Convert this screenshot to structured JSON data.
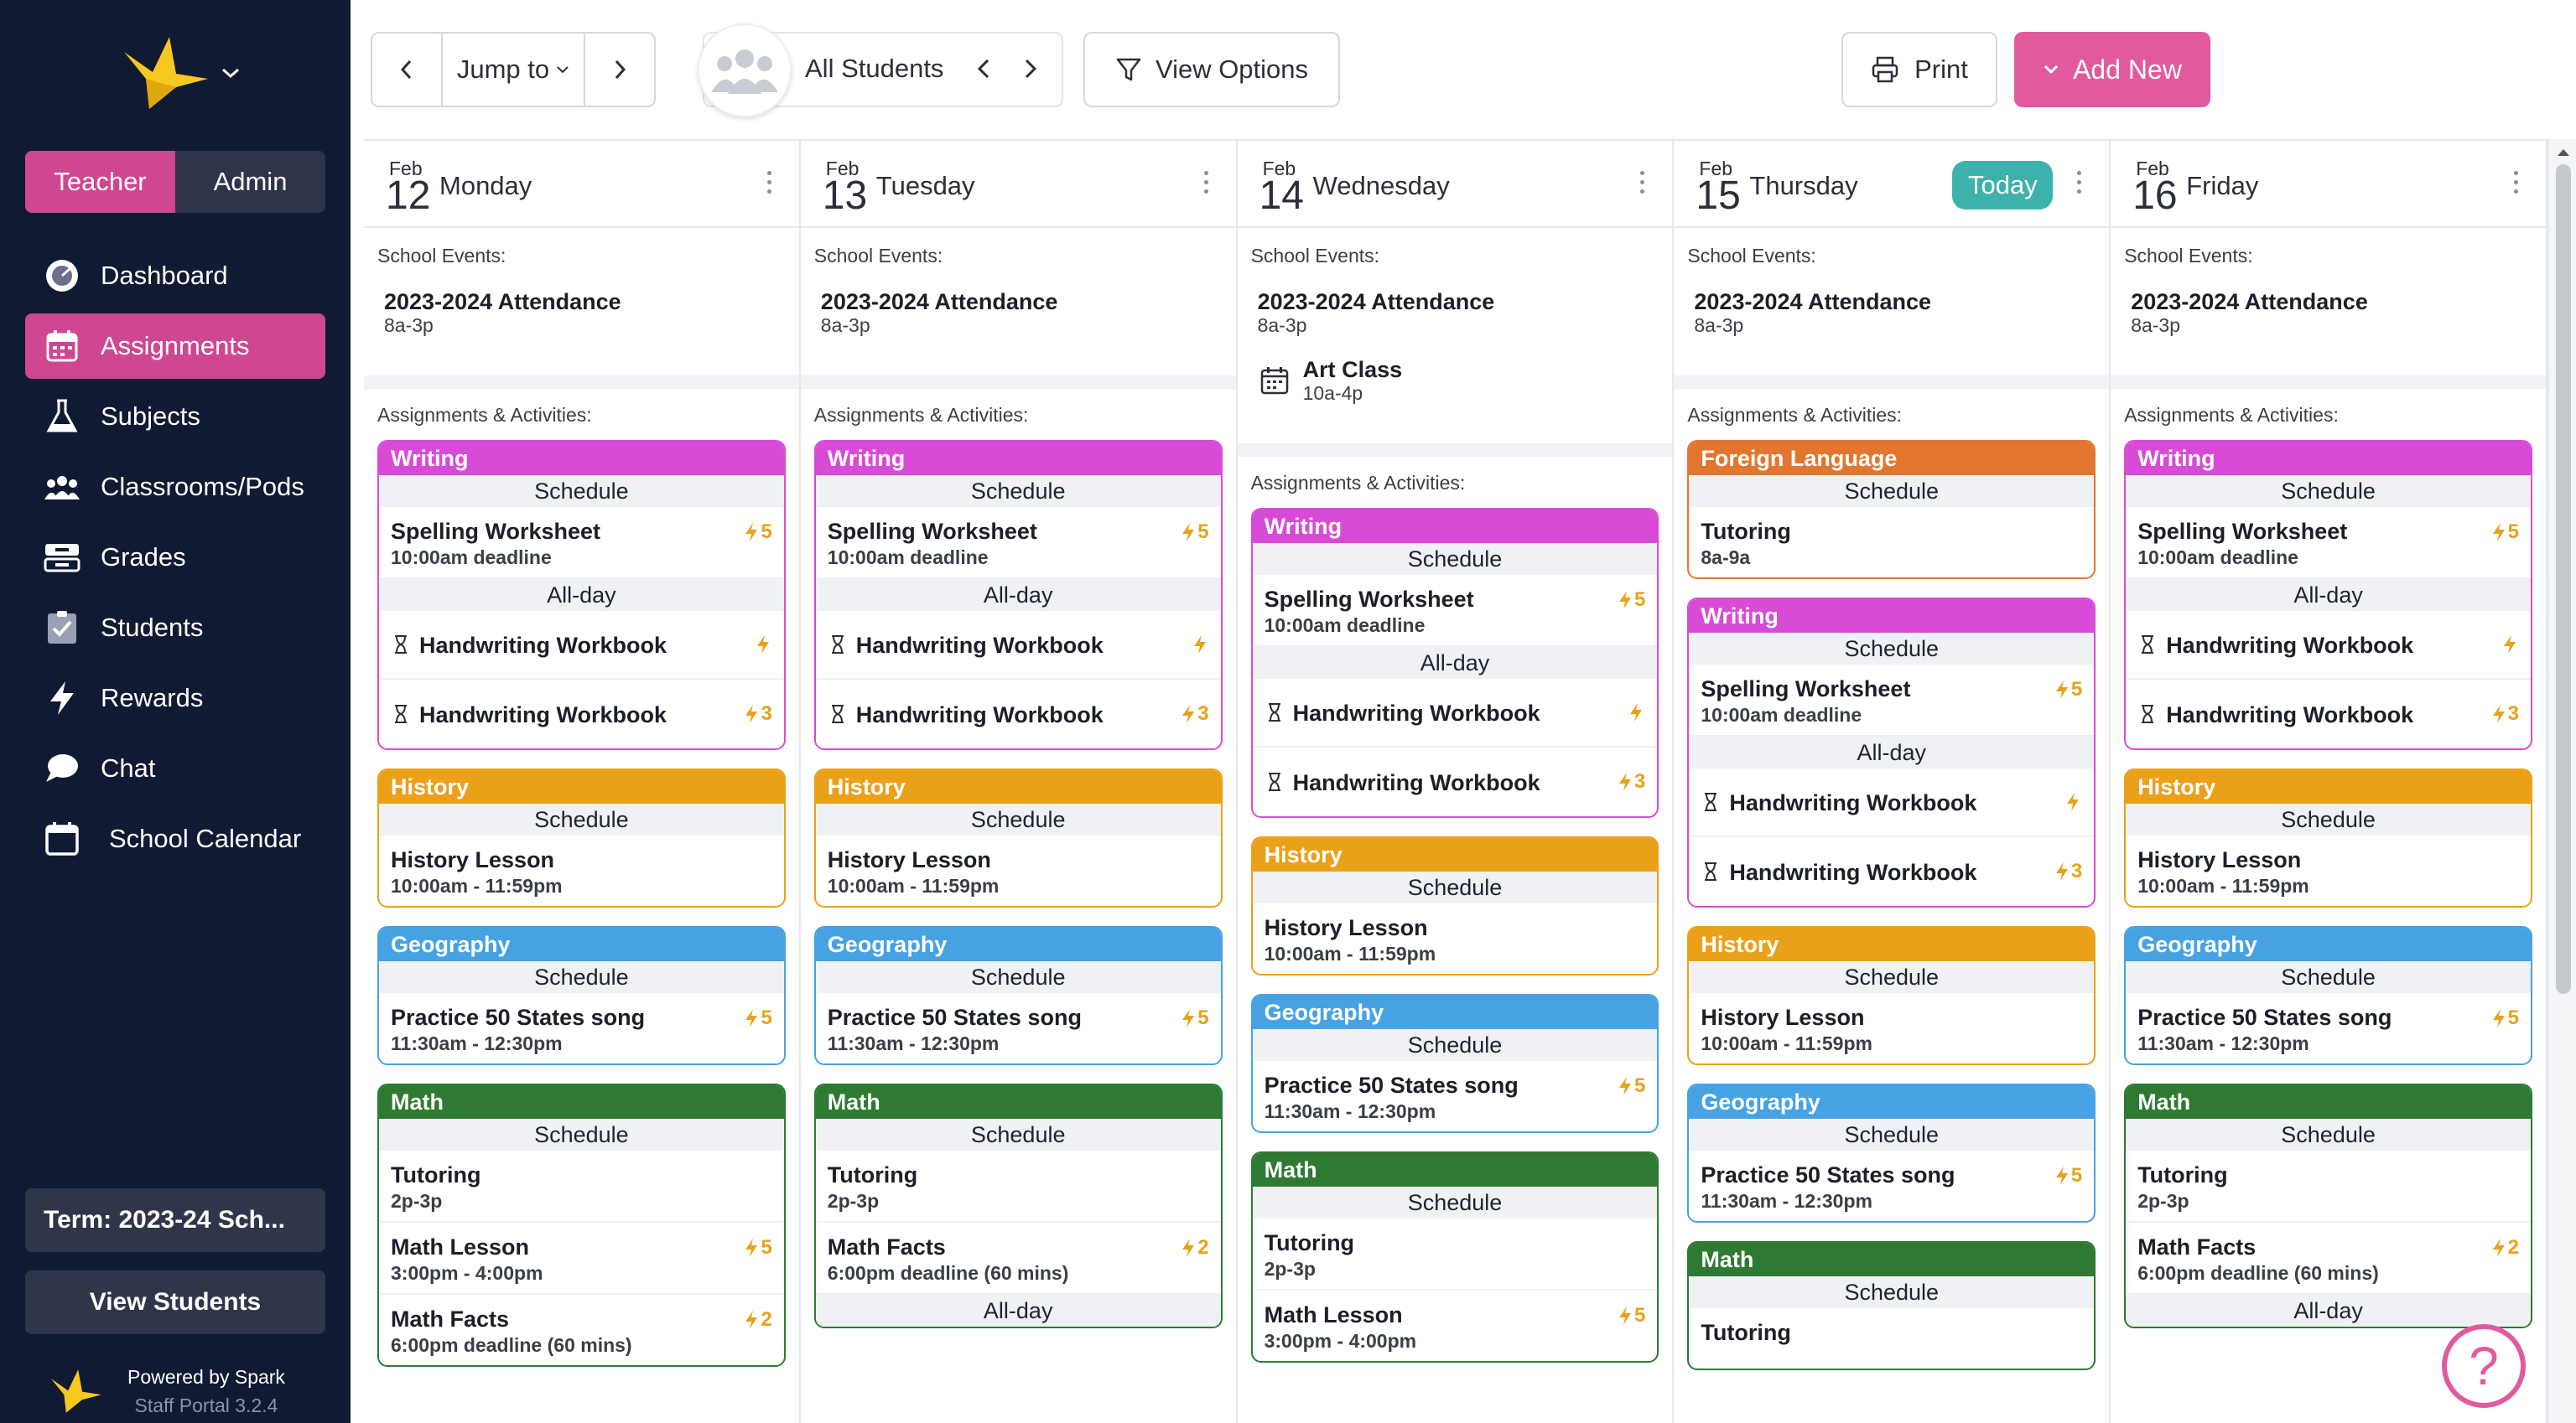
{
  "sidebar": {
    "roles": [
      "Teacher",
      "Admin"
    ],
    "nav": [
      {
        "label": "Dashboard",
        "icon": "dashboard-icon"
      },
      {
        "label": "Assignments",
        "icon": "calendar-icon"
      },
      {
        "label": "Subjects",
        "icon": "flask-icon"
      },
      {
        "label": "Classrooms/Pods",
        "icon": "group-icon"
      },
      {
        "label": "Grades",
        "icon": "grades-icon"
      },
      {
        "label": "Students",
        "icon": "students-icon"
      },
      {
        "label": "Rewards",
        "icon": "lightning-icon"
      },
      {
        "label": "Chat",
        "icon": "chat-icon"
      },
      {
        "label": "School Calendar",
        "icon": "school-calendar-icon"
      }
    ],
    "term": "Term: 2023-24 Sch...",
    "view_students": "View Students",
    "powered_by": "Powered by Spark",
    "version": "Staff Portal 3.2.4"
  },
  "topbar": {
    "jump_to": "Jump to",
    "students": "All Students",
    "view_options": "View Options",
    "print": "Print",
    "add_new": "Add New"
  },
  "colors": {
    "accent": "#cf4791",
    "writing": "#d84bd7",
    "history": "#eba01a",
    "geography": "#46a2e3",
    "math": "#2e7a32",
    "foreign_language": "#e3762f",
    "today": "#3bb3ac"
  },
  "calendar": {
    "school_events_label": "School Events:",
    "assignments_label": "Assignments & Activities:",
    "today_label": "Today",
    "days": [
      {
        "month": "Feb",
        "num": "12",
        "name": "Monday",
        "today": false,
        "events": [
          {
            "title": "2023-2024 Attendance",
            "time": "8a-3p"
          }
        ],
        "cards": [
          {
            "subject": "Writing",
            "color": "writing",
            "groups": [
              {
                "label": "Schedule",
                "items": [
                  {
                    "title": "Spelling Worksheet",
                    "sub": "10:00am deadline",
                    "points": "5"
                  }
                ]
              },
              {
                "label": "All-day",
                "items": [
                  {
                    "title": "Handwriting Workbook",
                    "hourglass": true,
                    "points": ""
                  },
                  {
                    "title": "Handwriting Workbook",
                    "hourglass": true,
                    "points": "3"
                  }
                ]
              }
            ]
          },
          {
            "subject": "History",
            "color": "history",
            "groups": [
              {
                "label": "Schedule",
                "items": [
                  {
                    "title": "History Lesson",
                    "sub": "10:00am - 11:59pm"
                  }
                ]
              }
            ]
          },
          {
            "subject": "Geography",
            "color": "geography",
            "groups": [
              {
                "label": "Schedule",
                "items": [
                  {
                    "title": "Practice 50 States song",
                    "sub": "11:30am - 12:30pm",
                    "points": "5"
                  }
                ]
              }
            ]
          },
          {
            "subject": "Math",
            "color": "math",
            "groups": [
              {
                "label": "Schedule",
                "items": [
                  {
                    "title": "Tutoring",
                    "sub": "2p-3p"
                  },
                  {
                    "title": "Math Lesson",
                    "sub": "3:00pm - 4:00pm",
                    "points": "5"
                  },
                  {
                    "title": "Math Facts",
                    "sub": "6:00pm deadline (60 mins)",
                    "points": "2"
                  }
                ]
              }
            ]
          }
        ]
      },
      {
        "month": "Feb",
        "num": "13",
        "name": "Tuesday",
        "today": false,
        "events": [
          {
            "title": "2023-2024 Attendance",
            "time": "8a-3p"
          }
        ],
        "cards": [
          {
            "subject": "Writing",
            "color": "writing",
            "groups": [
              {
                "label": "Schedule",
                "items": [
                  {
                    "title": "Spelling Worksheet",
                    "sub": "10:00am deadline",
                    "points": "5"
                  }
                ]
              },
              {
                "label": "All-day",
                "items": [
                  {
                    "title": "Handwriting Workbook",
                    "hourglass": true,
                    "points": ""
                  },
                  {
                    "title": "Handwriting Workbook",
                    "hourglass": true,
                    "points": "3"
                  }
                ]
              }
            ]
          },
          {
            "subject": "History",
            "color": "history",
            "groups": [
              {
                "label": "Schedule",
                "items": [
                  {
                    "title": "History Lesson",
                    "sub": "10:00am - 11:59pm"
                  }
                ]
              }
            ]
          },
          {
            "subject": "Geography",
            "color": "geography",
            "groups": [
              {
                "label": "Schedule",
                "items": [
                  {
                    "title": "Practice 50 States song",
                    "sub": "11:30am - 12:30pm",
                    "points": "5"
                  }
                ]
              }
            ]
          },
          {
            "subject": "Math",
            "color": "math",
            "groups": [
              {
                "label": "Schedule",
                "items": [
                  {
                    "title": "Tutoring",
                    "sub": "2p-3p"
                  },
                  {
                    "title": "Math Facts",
                    "sub": "6:00pm deadline (60 mins)",
                    "points": "2"
                  }
                ]
              },
              {
                "label": "All-day",
                "items": []
              }
            ]
          }
        ]
      },
      {
        "month": "Feb",
        "num": "14",
        "name": "Wednesday",
        "today": false,
        "events": [
          {
            "title": "2023-2024 Attendance",
            "time": "8a-3p"
          },
          {
            "title": "Art Class",
            "time": "10a-4p",
            "icon": true
          }
        ],
        "cards": [
          {
            "subject": "Writing",
            "color": "writing",
            "groups": [
              {
                "label": "Schedule",
                "items": [
                  {
                    "title": "Spelling Worksheet",
                    "sub": "10:00am deadline",
                    "points": "5"
                  }
                ]
              },
              {
                "label": "All-day",
                "items": [
                  {
                    "title": "Handwriting Workbook",
                    "hourglass": true,
                    "points": ""
                  },
                  {
                    "title": "Handwriting Workbook",
                    "hourglass": true,
                    "points": "3"
                  }
                ]
              }
            ]
          },
          {
            "subject": "History",
            "color": "history",
            "groups": [
              {
                "label": "Schedule",
                "items": [
                  {
                    "title": "History Lesson",
                    "sub": "10:00am - 11:59pm"
                  }
                ]
              }
            ]
          },
          {
            "subject": "Geography",
            "color": "geography",
            "groups": [
              {
                "label": "Schedule",
                "items": [
                  {
                    "title": "Practice 50 States song",
                    "sub": "11:30am - 12:30pm",
                    "points": "5"
                  }
                ]
              }
            ]
          },
          {
            "subject": "Math",
            "color": "math",
            "groups": [
              {
                "label": "Schedule",
                "items": [
                  {
                    "title": "Tutoring",
                    "sub": "2p-3p"
                  },
                  {
                    "title": "Math Lesson",
                    "sub": "3:00pm - 4:00pm",
                    "points": "5"
                  }
                ]
              }
            ]
          }
        ]
      },
      {
        "month": "Feb",
        "num": "15",
        "name": "Thursday",
        "today": true,
        "events": [
          {
            "title": "2023-2024 Attendance",
            "time": "8a-3p"
          }
        ],
        "cards": [
          {
            "subject": "Foreign Language",
            "color": "foreign_language",
            "groups": [
              {
                "label": "Schedule",
                "items": [
                  {
                    "title": "Tutoring",
                    "sub": "8a-9a"
                  }
                ]
              }
            ]
          },
          {
            "subject": "Writing",
            "color": "writing",
            "groups": [
              {
                "label": "Schedule",
                "items": [
                  {
                    "title": "Spelling Worksheet",
                    "sub": "10:00am deadline",
                    "points": "5"
                  }
                ]
              },
              {
                "label": "All-day",
                "items": [
                  {
                    "title": "Handwriting Workbook",
                    "hourglass": true,
                    "points": ""
                  },
                  {
                    "title": "Handwriting Workbook",
                    "hourglass": true,
                    "points": "3"
                  }
                ]
              }
            ]
          },
          {
            "subject": "History",
            "color": "history",
            "groups": [
              {
                "label": "Schedule",
                "items": [
                  {
                    "title": "History Lesson",
                    "sub": "10:00am - 11:59pm"
                  }
                ]
              }
            ]
          },
          {
            "subject": "Geography",
            "color": "geography",
            "groups": [
              {
                "label": "Schedule",
                "items": [
                  {
                    "title": "Practice 50 States song",
                    "sub": "11:30am - 12:30pm",
                    "points": "5"
                  }
                ]
              }
            ]
          },
          {
            "subject": "Math",
            "color": "math",
            "groups": [
              {
                "label": "Schedule",
                "items": [
                  {
                    "title": "Tutoring",
                    "sub": ""
                  }
                ]
              }
            ]
          }
        ]
      },
      {
        "month": "Feb",
        "num": "16",
        "name": "Friday",
        "today": false,
        "events": [
          {
            "title": "2023-2024 Attendance",
            "time": "8a-3p"
          }
        ],
        "cards": [
          {
            "subject": "Writing",
            "color": "writing",
            "groups": [
              {
                "label": "Schedule",
                "items": [
                  {
                    "title": "Spelling Worksheet",
                    "sub": "10:00am deadline",
                    "points": "5"
                  }
                ]
              },
              {
                "label": "All-day",
                "items": [
                  {
                    "title": "Handwriting Workbook",
                    "hourglass": true,
                    "points": ""
                  },
                  {
                    "title": "Handwriting Workbook",
                    "hourglass": true,
                    "points": "3"
                  }
                ]
              }
            ]
          },
          {
            "subject": "History",
            "color": "history",
            "groups": [
              {
                "label": "Schedule",
                "items": [
                  {
                    "title": "History Lesson",
                    "sub": "10:00am - 11:59pm"
                  }
                ]
              }
            ]
          },
          {
            "subject": "Geography",
            "color": "geography",
            "groups": [
              {
                "label": "Schedule",
                "items": [
                  {
                    "title": "Practice 50 States song",
                    "sub": "11:30am - 12:30pm",
                    "points": "5"
                  }
                ]
              }
            ]
          },
          {
            "subject": "Math",
            "color": "math",
            "groups": [
              {
                "label": "Schedule",
                "items": [
                  {
                    "title": "Tutoring",
                    "sub": "2p-3p"
                  },
                  {
                    "title": "Math Facts",
                    "sub": "6:00pm deadline (60 mins)",
                    "points": "2"
                  }
                ]
              },
              {
                "label": "All-day",
                "items": []
              }
            ]
          }
        ]
      }
    ]
  }
}
